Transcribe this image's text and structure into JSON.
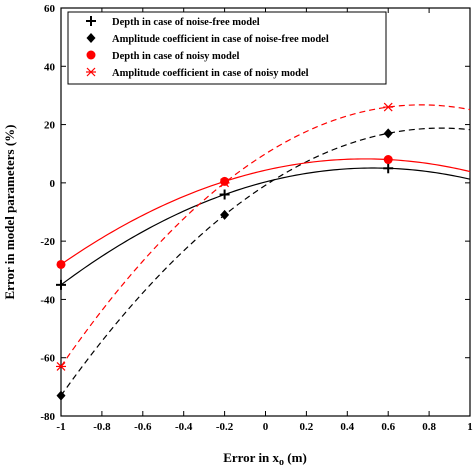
{
  "chart_data": {
    "type": "line",
    "title": "",
    "xlabel": "Error in x",
    "xlabel_subscript": "o",
    "xlabel_unit": " (m)",
    "ylabel": "Error in model parameters (%)",
    "xlim": [
      -1,
      1
    ],
    "ylim": [
      -80,
      60
    ],
    "xticks": [
      -1,
      -0.8,
      -0.6,
      -0.4,
      -0.2,
      0,
      0.2,
      0.4,
      0.6,
      0.8,
      1
    ],
    "xtick_labels": [
      "-1",
      "-0.8",
      "-0.6",
      "-0.4",
      "-0.2",
      "0",
      "0.2",
      "0.4",
      "0.6",
      "0.8",
      "1"
    ],
    "yticks": [
      -80,
      -60,
      -40,
      -20,
      0,
      20,
      40,
      60
    ],
    "ytick_labels": [
      "-80",
      "-60",
      "-40",
      "-20",
      "0",
      "20",
      "40",
      "60"
    ],
    "grid": false,
    "legend_position": "top-left",
    "series": [
      {
        "name": "Depth in case of noise-free model",
        "marker": "plus",
        "color": "#000000",
        "line_style": "solid",
        "x": [
          -1,
          -0.2,
          0.6
        ],
        "y": [
          -35,
          -4,
          5
        ]
      },
      {
        "name": "Amplitude coefficient in case of noise-free model",
        "marker": "diamond",
        "color": "#000000",
        "line_style": "dashed",
        "x": [
          -1,
          -0.2,
          0.6
        ],
        "y": [
          -73,
          -11,
          17
        ]
      },
      {
        "name": "Depth in case of noisy model",
        "marker": "circle",
        "color": "#ff0000",
        "line_style": "solid",
        "x": [
          -1,
          -0.2,
          0.6
        ],
        "y": [
          -28,
          0.5,
          8
        ]
      },
      {
        "name": "Amplitude coefficient in case of noisy model",
        "marker": "asterisk",
        "color": "#ff0000",
        "line_style": "dashed",
        "x": [
          -1,
          -0.2,
          0.6
        ],
        "y": [
          -63,
          0,
          26
        ]
      }
    ]
  }
}
